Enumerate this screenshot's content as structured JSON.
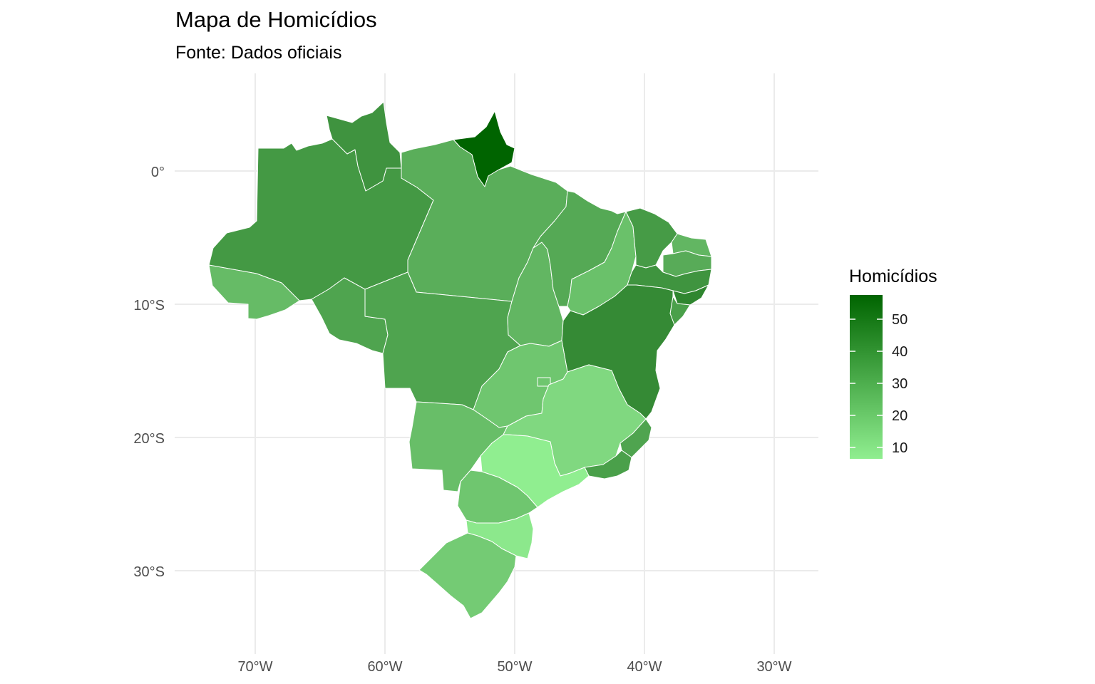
{
  "title": "Mapa de Homicídios",
  "subtitle": "Fonte: Dados oficiais",
  "map": {
    "x_ticks": [
      "70°W",
      "60°W",
      "50°W",
      "40°W",
      "30°W"
    ],
    "y_ticks": [
      "0°",
      "10°S",
      "20°S",
      "30°S"
    ],
    "grid": true,
    "legend": {
      "title": "Homicídios",
      "labels": [
        "50",
        "40",
        "30",
        "20",
        "10"
      ],
      "color_low": "#90EE90",
      "color_high": "#006400",
      "placement": "right"
    }
  },
  "regions": [
    {
      "name": "RR",
      "color": "#3f933f"
    },
    {
      "name": "AM",
      "color": "#449944"
    },
    {
      "name": "AP",
      "color": "#006400"
    },
    {
      "name": "PA",
      "color": "#5aae5a"
    },
    {
      "name": "AC",
      "color": "#66bb66"
    },
    {
      "name": "RO",
      "color": "#4fa44f"
    },
    {
      "name": "MT",
      "color": "#4fa44f"
    },
    {
      "name": "TO",
      "color": "#62b662"
    },
    {
      "name": "MA",
      "color": "#55a955"
    },
    {
      "name": "PI",
      "color": "#6ac16a"
    },
    {
      "name": "CE",
      "color": "#469b46"
    },
    {
      "name": "RN",
      "color": "#62b662"
    },
    {
      "name": "PB",
      "color": "#58ab58"
    },
    {
      "name": "PE",
      "color": "#3f943f"
    },
    {
      "name": "AL",
      "color": "#2f862f"
    },
    {
      "name": "SE",
      "color": "#4aa04a"
    },
    {
      "name": "BA",
      "color": "#358a35"
    },
    {
      "name": "GO",
      "color": "#6fc66f"
    },
    {
      "name": "DF",
      "color": "#6fc66f"
    },
    {
      "name": "MS",
      "color": "#68be68"
    },
    {
      "name": "MG",
      "color": "#80d880"
    },
    {
      "name": "ES",
      "color": "#4fa44f"
    },
    {
      "name": "RJ",
      "color": "#4aa04a"
    },
    {
      "name": "SP",
      "color": "#90EE90"
    },
    {
      "name": "PR",
      "color": "#6fc66f"
    },
    {
      "name": "SC",
      "color": "#8ce88c"
    },
    {
      "name": "RS",
      "color": "#74cb74"
    }
  ]
}
